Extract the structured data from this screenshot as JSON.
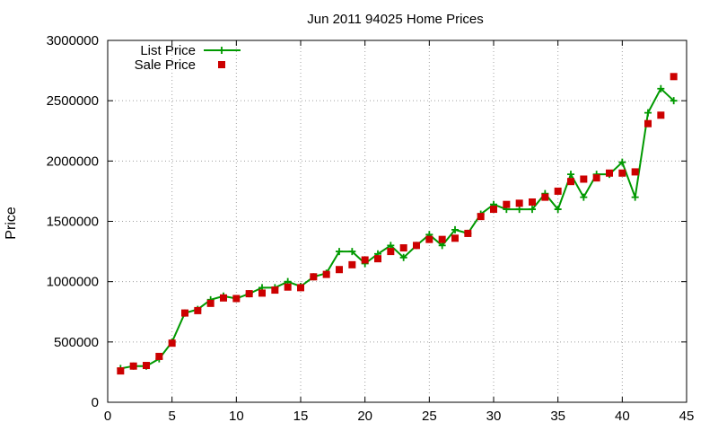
{
  "chart_data": {
    "type": "line",
    "title": "Jun 2011 94025 Home Prices",
    "xlabel": "",
    "ylabel": "Price",
    "xlim": [
      0,
      45
    ],
    "ylim": [
      0,
      3000000
    ],
    "x_ticks": [
      0,
      5,
      10,
      15,
      20,
      25,
      30,
      35,
      40,
      45
    ],
    "y_ticks": [
      0,
      500000,
      1000000,
      1500000,
      2000000,
      2500000,
      3000000
    ],
    "grid": true,
    "legend_position": "top-left",
    "x": [
      1,
      2,
      3,
      4,
      5,
      6,
      7,
      8,
      9,
      10,
      11,
      12,
      13,
      14,
      15,
      16,
      17,
      18,
      19,
      20,
      21,
      22,
      23,
      24,
      25,
      26,
      27,
      28,
      29,
      30,
      31,
      32,
      33,
      34,
      35,
      36,
      37,
      38,
      39,
      40,
      41,
      42,
      43,
      44
    ],
    "series": [
      {
        "name": "List Price",
        "style": "line+cross",
        "color": "#009900",
        "values": [
          280000,
          300000,
          300000,
          360000,
          500000,
          740000,
          770000,
          850000,
          880000,
          860000,
          900000,
          950000,
          950000,
          1000000,
          960000,
          1040000,
          1070000,
          1250000,
          1250000,
          1150000,
          1230000,
          1300000,
          1200000,
          1300000,
          1390000,
          1300000,
          1430000,
          1400000,
          1560000,
          1640000,
          1600000,
          1600000,
          1600000,
          1730000,
          1600000,
          1890000,
          1700000,
          1890000,
          1890000,
          1990000,
          1700000,
          2400000,
          2600000,
          2500000
        ]
      },
      {
        "name": "Sale Price",
        "style": "square",
        "color": "#cc0000",
        "values": [
          260000,
          300000,
          305000,
          380000,
          490000,
          740000,
          760000,
          820000,
          865000,
          860000,
          900000,
          905000,
          930000,
          955000,
          950000,
          1040000,
          1060000,
          1100000,
          1140000,
          1180000,
          1190000,
          1250000,
          1280000,
          1300000,
          1350000,
          1350000,
          1360000,
          1400000,
          1540000,
          1600000,
          1640000,
          1650000,
          1660000,
          1700000,
          1750000,
          1830000,
          1850000,
          1860000,
          1900000,
          1900000,
          1910000,
          2310000,
          2380000,
          2700000
        ]
      }
    ]
  }
}
